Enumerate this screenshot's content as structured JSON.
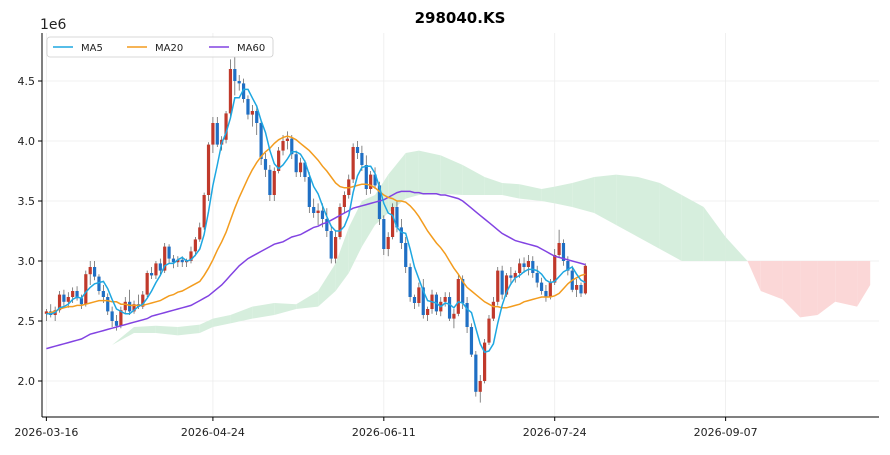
{
  "chart_data": {
    "type": "candlestick",
    "title": "298040.KS",
    "y_multiplier_label": "1e6",
    "ylim": [
      1.7,
      4.9
    ],
    "y_ticks": [
      2.0,
      2.5,
      3.0,
      3.5,
      4.0,
      4.5
    ],
    "x_tick_labels": [
      "2026-03-16",
      "2026-04-24",
      "2026-06-11",
      "2026-07-24",
      "2026-09-07"
    ],
    "x_tick_positions": [
      0,
      38,
      77,
      116,
      155
    ],
    "xlim": [
      -1,
      190
    ],
    "grid": true,
    "legend_position": "top-left",
    "legend": [
      {
        "name": "MA5",
        "color": "#1ea7e1"
      },
      {
        "name": "MA20",
        "color": "#f39c1e"
      },
      {
        "name": "MA60",
        "color": "#8243e2"
      }
    ],
    "colors": {
      "up": "#c0392b",
      "down": "#1f6fc4",
      "cloud_bull": "#d6eedd",
      "cloud_bear": "#fbd7d7"
    },
    "ohlc": [
      [
        2.56,
        2.6,
        2.5,
        2.58
      ],
      [
        2.58,
        2.64,
        2.53,
        2.55
      ],
      [
        2.55,
        2.62,
        2.5,
        2.59
      ],
      [
        2.59,
        2.75,
        2.57,
        2.72
      ],
      [
        2.72,
        2.76,
        2.62,
        2.66
      ],
      [
        2.66,
        2.74,
        2.61,
        2.7
      ],
      [
        2.7,
        2.78,
        2.65,
        2.75
      ],
      [
        2.75,
        2.79,
        2.67,
        2.69
      ],
      [
        2.69,
        2.72,
        2.6,
        2.64
      ],
      [
        2.64,
        2.92,
        2.62,
        2.89
      ],
      [
        2.89,
        3.0,
        2.8,
        2.95
      ],
      [
        2.95,
        3.0,
        2.84,
        2.87
      ],
      [
        2.87,
        2.89,
        2.72,
        2.75
      ],
      [
        2.75,
        2.8,
        2.65,
        2.7
      ],
      [
        2.7,
        2.73,
        2.55,
        2.58
      ],
      [
        2.58,
        2.62,
        2.45,
        2.5
      ],
      [
        2.5,
        2.55,
        2.42,
        2.46
      ],
      [
        2.46,
        2.62,
        2.44,
        2.59
      ],
      [
        2.59,
        2.7,
        2.56,
        2.66
      ],
      [
        2.66,
        2.76,
        2.55,
        2.58
      ],
      [
        2.58,
        2.67,
        2.56,
        2.64
      ],
      [
        2.64,
        2.72,
        2.6,
        2.62
      ],
      [
        2.62,
        2.75,
        2.6,
        2.72
      ],
      [
        2.72,
        2.92,
        2.7,
        2.9
      ],
      [
        2.9,
        2.95,
        2.85,
        2.88
      ],
      [
        2.88,
        3.0,
        2.85,
        2.98
      ],
      [
        2.98,
        3.02,
        2.88,
        2.92
      ],
      [
        2.92,
        3.15,
        2.9,
        3.12
      ],
      [
        3.12,
        3.14,
        2.98,
        3.02
      ],
      [
        3.02,
        3.05,
        2.94,
        2.99
      ],
      [
        2.99,
        3.04,
        2.95,
        3.01
      ],
      [
        3.01,
        3.04,
        2.95,
        2.99
      ],
      [
        2.99,
        3.02,
        2.95,
        3.0
      ],
      [
        3.0,
        3.12,
        2.98,
        3.08
      ],
      [
        3.08,
        3.2,
        3.04,
        3.18
      ],
      [
        3.18,
        3.32,
        3.16,
        3.28
      ],
      [
        3.28,
        3.57,
        3.26,
        3.55
      ],
      [
        3.55,
        3.99,
        3.5,
        3.97
      ],
      [
        3.97,
        4.2,
        3.9,
        4.15
      ],
      [
        4.15,
        4.2,
        3.95,
        3.97
      ],
      [
        3.97,
        4.04,
        3.92,
        4.01
      ],
      [
        4.01,
        4.25,
        3.98,
        4.23
      ],
      [
        4.23,
        4.68,
        4.2,
        4.6
      ],
      [
        4.6,
        4.7,
        4.38,
        4.5
      ],
      [
        4.5,
        4.55,
        4.42,
        4.48
      ],
      [
        4.48,
        4.52,
        4.32,
        4.35
      ],
      [
        4.35,
        4.38,
        4.18,
        4.22
      ],
      [
        4.22,
        4.3,
        4.12,
        4.25
      ],
      [
        4.25,
        4.3,
        4.05,
        4.15
      ],
      [
        4.15,
        4.18,
        3.8,
        3.85
      ],
      [
        3.85,
        3.9,
        3.7,
        3.76
      ],
      [
        3.76,
        3.8,
        3.5,
        3.55
      ],
      [
        3.55,
        3.78,
        3.5,
        3.75
      ],
      [
        3.75,
        3.95,
        3.73,
        3.92
      ],
      [
        3.92,
        4.05,
        3.88,
        4.0
      ],
      [
        4.0,
        4.08,
        3.93,
        4.02
      ],
      [
        4.02,
        4.05,
        3.85,
        3.89
      ],
      [
        3.89,
        3.92,
        3.7,
        3.74
      ],
      [
        3.74,
        3.86,
        3.7,
        3.82
      ],
      [
        3.82,
        3.84,
        3.66,
        3.7
      ],
      [
        3.7,
        3.74,
        3.4,
        3.45
      ],
      [
        3.45,
        3.52,
        3.36,
        3.4
      ],
      [
        3.4,
        3.48,
        3.3,
        3.42
      ],
      [
        3.42,
        3.48,
        3.28,
        3.35
      ],
      [
        3.35,
        3.44,
        3.2,
        3.25
      ],
      [
        3.25,
        3.3,
        2.98,
        3.02
      ],
      [
        3.02,
        3.25,
        2.98,
        3.2
      ],
      [
        3.2,
        3.48,
        3.18,
        3.45
      ],
      [
        3.45,
        3.58,
        3.4,
        3.55
      ],
      [
        3.55,
        3.72,
        3.52,
        3.68
      ],
      [
        3.68,
        3.98,
        3.65,
        3.95
      ],
      [
        3.95,
        4.0,
        3.85,
        3.9
      ],
      [
        3.9,
        3.96,
        3.75,
        3.8
      ],
      [
        3.8,
        3.88,
        3.55,
        3.6
      ],
      [
        3.6,
        3.75,
        3.56,
        3.72
      ],
      [
        3.72,
        3.78,
        3.6,
        3.63
      ],
      [
        3.63,
        3.66,
        3.3,
        3.35
      ],
      [
        3.35,
        3.38,
        3.05,
        3.1
      ],
      [
        3.1,
        3.24,
        3.04,
        3.2
      ],
      [
        3.2,
        3.48,
        3.18,
        3.45
      ],
      [
        3.45,
        3.5,
        3.24,
        3.28
      ],
      [
        3.28,
        3.35,
        3.1,
        3.15
      ],
      [
        3.15,
        3.2,
        2.9,
        2.95
      ],
      [
        2.95,
        2.98,
        2.66,
        2.7
      ],
      [
        2.7,
        2.72,
        2.6,
        2.65
      ],
      [
        2.65,
        2.82,
        2.62,
        2.78
      ],
      [
        2.78,
        2.85,
        2.52,
        2.55
      ],
      [
        2.55,
        2.62,
        2.5,
        2.6
      ],
      [
        2.6,
        2.76,
        2.56,
        2.72
      ],
      [
        2.72,
        2.74,
        2.55,
        2.58
      ],
      [
        2.58,
        2.7,
        2.54,
        2.66
      ],
      [
        2.66,
        2.74,
        2.62,
        2.7
      ],
      [
        2.7,
        2.74,
        2.5,
        2.52
      ],
      [
        2.52,
        2.6,
        2.44,
        2.56
      ],
      [
        2.56,
        2.88,
        2.54,
        2.85
      ],
      [
        2.85,
        2.88,
        2.6,
        2.65
      ],
      [
        2.65,
        2.7,
        2.4,
        2.45
      ],
      [
        2.45,
        2.48,
        2.2,
        2.22
      ],
      [
        2.22,
        2.25,
        1.87,
        1.91
      ],
      [
        1.91,
        2.05,
        1.82,
        2.0
      ],
      [
        2.0,
        2.35,
        1.98,
        2.32
      ],
      [
        2.32,
        2.55,
        2.3,
        2.52
      ],
      [
        2.52,
        2.7,
        2.5,
        2.66
      ],
      [
        2.66,
        2.95,
        2.63,
        2.92
      ],
      [
        2.92,
        2.96,
        2.68,
        2.72
      ],
      [
        2.72,
        2.9,
        2.7,
        2.88
      ],
      [
        2.88,
        2.95,
        2.8,
        2.86
      ],
      [
        2.86,
        2.92,
        2.82,
        2.9
      ],
      [
        2.9,
        3.02,
        2.86,
        2.98
      ],
      [
        2.98,
        3.03,
        2.9,
        2.95
      ],
      [
        2.95,
        3.05,
        2.88,
        3.0
      ],
      [
        3.0,
        3.04,
        2.86,
        2.9
      ],
      [
        2.9,
        2.96,
        2.78,
        2.82
      ],
      [
        2.82,
        2.86,
        2.72,
        2.75
      ],
      [
        2.75,
        2.8,
        2.66,
        2.7
      ],
      [
        2.7,
        2.85,
        2.68,
        2.82
      ],
      [
        2.82,
        3.1,
        2.8,
        3.05
      ],
      [
        3.05,
        3.26,
        3.03,
        3.15
      ],
      [
        3.15,
        3.18,
        2.96,
        3.0
      ],
      [
        3.0,
        3.04,
        2.88,
        2.92
      ],
      [
        2.92,
        2.96,
        2.74,
        2.76
      ],
      [
        2.76,
        2.85,
        2.7,
        2.8
      ],
      [
        2.8,
        2.82,
        2.7,
        2.73
      ],
      [
        2.73,
        2.98,
        2.72,
        2.96
      ]
    ],
    "ma5": [
      2.56,
      2.56,
      2.57,
      2.61,
      2.62,
      2.64,
      2.68,
      2.7,
      2.69,
      2.74,
      2.78,
      2.81,
      2.82,
      2.83,
      2.77,
      2.68,
      2.6,
      2.58,
      2.56,
      2.56,
      2.59,
      2.62,
      2.64,
      2.69,
      2.75,
      2.82,
      2.88,
      2.96,
      2.98,
      2.98,
      3.01,
      3.03,
      3.0,
      3.01,
      3.05,
      3.1,
      3.22,
      3.41,
      3.63,
      3.8,
      3.98,
      4.07,
      4.19,
      4.36,
      4.36,
      4.43,
      4.43,
      4.36,
      4.29,
      4.17,
      4.07,
      3.92,
      3.81,
      3.77,
      3.8,
      3.85,
      3.91,
      3.91,
      3.89,
      3.83,
      3.72,
      3.62,
      3.56,
      3.46,
      3.37,
      3.29,
      3.25,
      3.25,
      3.29,
      3.38,
      3.57,
      3.71,
      3.78,
      3.79,
      3.79,
      3.73,
      3.62,
      3.48,
      3.4,
      3.38,
      3.28,
      3.24,
      3.23,
      3.1,
      2.95,
      2.85,
      2.75,
      2.67,
      2.66,
      2.65,
      2.62,
      2.65,
      2.64,
      2.61,
      2.66,
      2.65,
      2.6,
      2.57,
      2.44,
      2.31,
      2.24,
      2.25,
      2.31,
      2.48,
      2.63,
      2.74,
      2.81,
      2.86,
      2.88,
      2.91,
      2.93,
      2.93,
      2.92,
      2.89,
      2.84,
      2.82,
      2.83,
      2.87,
      2.91,
      2.93,
      2.95,
      2.89,
      2.84,
      2.82
    ],
    "ma20": [
      2.56,
      2.57,
      2.58,
      2.6,
      2.61,
      2.62,
      2.62,
      2.63,
      2.63,
      2.64,
      2.65,
      2.66,
      2.67,
      2.67,
      2.67,
      2.66,
      2.66,
      2.64,
      2.64,
      2.63,
      2.63,
      2.63,
      2.63,
      2.64,
      2.65,
      2.66,
      2.67,
      2.69,
      2.71,
      2.72,
      2.74,
      2.75,
      2.77,
      2.79,
      2.81,
      2.83,
      2.88,
      2.94,
      3.01,
      3.09,
      3.16,
      3.24,
      3.34,
      3.44,
      3.53,
      3.61,
      3.69,
      3.76,
      3.82,
      3.87,
      3.91,
      3.94,
      3.98,
      4.01,
      4.03,
      4.04,
      4.03,
      4.01,
      3.98,
      3.95,
      3.92,
      3.88,
      3.84,
      3.79,
      3.75,
      3.7,
      3.65,
      3.62,
      3.61,
      3.61,
      3.62,
      3.63,
      3.64,
      3.64,
      3.63,
      3.61,
      3.58,
      3.55,
      3.53,
      3.52,
      3.5,
      3.5,
      3.49,
      3.46,
      3.42,
      3.37,
      3.31,
      3.25,
      3.2,
      3.15,
      3.11,
      3.06,
      3.0,
      2.94,
      2.89,
      2.83,
      2.78,
      2.75,
      2.72,
      2.69,
      2.66,
      2.64,
      2.62,
      2.62,
      2.61,
      2.61,
      2.62,
      2.63,
      2.64,
      2.66,
      2.67,
      2.68,
      2.69,
      2.7,
      2.7,
      2.7,
      2.71,
      2.73,
      2.77,
      2.81,
      2.84,
      2.86,
      2.88,
      2.89
    ],
    "ma60": [
      2.27,
      2.28,
      2.29,
      2.3,
      2.31,
      2.32,
      2.33,
      2.34,
      2.35,
      2.37,
      2.39,
      2.4,
      2.41,
      2.42,
      2.43,
      2.44,
      2.45,
      2.46,
      2.47,
      2.48,
      2.49,
      2.5,
      2.51,
      2.52,
      2.54,
      2.55,
      2.56,
      2.57,
      2.58,
      2.59,
      2.6,
      2.61,
      2.62,
      2.63,
      2.65,
      2.67,
      2.69,
      2.71,
      2.74,
      2.77,
      2.8,
      2.84,
      2.88,
      2.92,
      2.96,
      2.99,
      3.02,
      3.04,
      3.06,
      3.08,
      3.1,
      3.12,
      3.14,
      3.15,
      3.16,
      3.18,
      3.2,
      3.21,
      3.22,
      3.24,
      3.26,
      3.28,
      3.29,
      3.31,
      3.32,
      3.34,
      3.36,
      3.38,
      3.4,
      3.42,
      3.44,
      3.45,
      3.46,
      3.47,
      3.48,
      3.49,
      3.5,
      3.51,
      3.53,
      3.55,
      3.57,
      3.58,
      3.58,
      3.58,
      3.57,
      3.57,
      3.56,
      3.56,
      3.56,
      3.56,
      3.55,
      3.55,
      3.54,
      3.53,
      3.52,
      3.5,
      3.47,
      3.44,
      3.41,
      3.38,
      3.35,
      3.32,
      3.29,
      3.26,
      3.23,
      3.21,
      3.19,
      3.17,
      3.16,
      3.15,
      3.14,
      3.13,
      3.12,
      3.1,
      3.08,
      3.06,
      3.04,
      3.03,
      3.02,
      3.01,
      3.0,
      2.99,
      2.98,
      2.97
    ],
    "span_a": [
      [
        0,
        2.2
      ],
      [
        8,
        2.22
      ],
      [
        12,
        2.18
      ],
      [
        15,
        2.3
      ],
      [
        20,
        2.45
      ],
      [
        25,
        2.46
      ],
      [
        30,
        2.45
      ],
      [
        35,
        2.47
      ],
      [
        38,
        2.52
      ],
      [
        42,
        2.55
      ],
      [
        47,
        2.62
      ],
      [
        52,
        2.65
      ],
      [
        57,
        2.64
      ],
      [
        62,
        2.75
      ],
      [
        66,
        2.98
      ],
      [
        69,
        3.28
      ],
      [
        72,
        3.5
      ],
      [
        75,
        3.55
      ],
      [
        78,
        3.72
      ],
      [
        82,
        3.9
      ],
      [
        85,
        3.92
      ],
      [
        90,
        3.88
      ],
      [
        95,
        3.8
      ],
      [
        100,
        3.7
      ],
      [
        104,
        3.65
      ],
      [
        108,
        3.64
      ],
      [
        113,
        3.6
      ],
      [
        116,
        3.62
      ],
      [
        120,
        3.65
      ],
      [
        125,
        3.7
      ],
      [
        130,
        3.72
      ],
      [
        135,
        3.7
      ],
      [
        140,
        3.65
      ],
      [
        145,
        3.55
      ],
      [
        150,
        3.45
      ],
      [
        155,
        3.2
      ],
      [
        160,
        3.0
      ],
      [
        163,
        2.75
      ],
      [
        168,
        2.68
      ],
      [
        172,
        2.53
      ],
      [
        176,
        2.55
      ],
      [
        180,
        2.66
      ],
      [
        185,
        2.62
      ],
      [
        188,
        2.8
      ]
    ],
    "span_b": [
      [
        0,
        2.2
      ],
      [
        8,
        2.22
      ],
      [
        12,
        2.18
      ],
      [
        15,
        2.3
      ],
      [
        20,
        2.4
      ],
      [
        25,
        2.4
      ],
      [
        30,
        2.38
      ],
      [
        35,
        2.4
      ],
      [
        38,
        2.45
      ],
      [
        42,
        2.48
      ],
      [
        47,
        2.52
      ],
      [
        52,
        2.55
      ],
      [
        57,
        2.6
      ],
      [
        62,
        2.62
      ],
      [
        66,
        2.75
      ],
      [
        69,
        2.9
      ],
      [
        72,
        3.12
      ],
      [
        75,
        3.3
      ],
      [
        78,
        3.4
      ],
      [
        82,
        3.52
      ],
      [
        85,
        3.55
      ],
      [
        90,
        3.56
      ],
      [
        95,
        3.55
      ],
      [
        100,
        3.55
      ],
      [
        104,
        3.55
      ],
      [
        108,
        3.52
      ],
      [
        113,
        3.5
      ],
      [
        116,
        3.48
      ],
      [
        120,
        3.45
      ],
      [
        125,
        3.4
      ],
      [
        130,
        3.3
      ],
      [
        135,
        3.2
      ],
      [
        140,
        3.1
      ],
      [
        145,
        3.0
      ],
      [
        150,
        3.0
      ],
      [
        155,
        3.0
      ],
      [
        160,
        3.0
      ],
      [
        163,
        3.0
      ],
      [
        168,
        3.0
      ],
      [
        172,
        3.0
      ],
      [
        176,
        3.0
      ],
      [
        180,
        3.0
      ],
      [
        185,
        3.0
      ],
      [
        188,
        3.0
      ]
    ]
  }
}
